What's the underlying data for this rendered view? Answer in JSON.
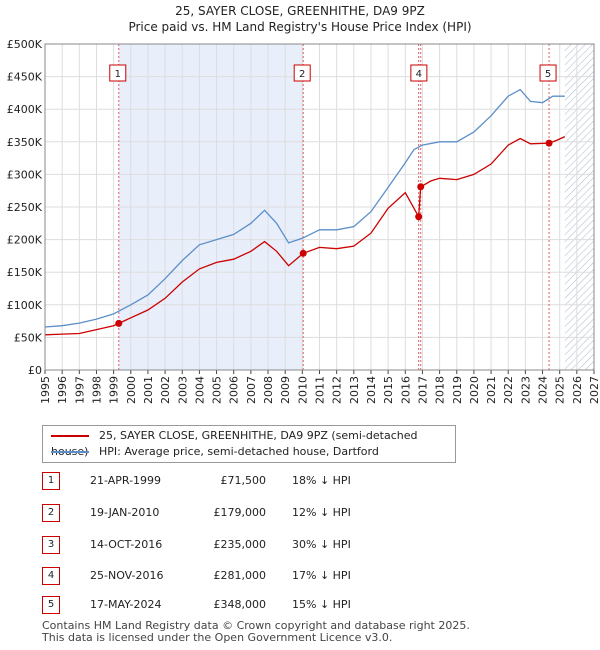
{
  "title_line1": "25, SAYER CLOSE, GREENHITHE, DA9 9PZ",
  "title_line2": "Price paid vs. HM Land Registry's House Price Index (HPI)",
  "colors": {
    "property": "#cc0000",
    "hpi": "#5b8fc9",
    "shade": "#e8eefa",
    "hatch": "#c9d3e3",
    "marker_line": "#e06060"
  },
  "chart_data": {
    "type": "line",
    "xlim": [
      1995,
      2027
    ],
    "ylim": [
      0,
      500000
    ],
    "yticks": [
      {
        "value": 0,
        "label": "£0"
      },
      {
        "value": 50000,
        "label": "£50K"
      },
      {
        "value": 100000,
        "label": "£100K"
      },
      {
        "value": 150000,
        "label": "£150K"
      },
      {
        "value": 200000,
        "label": "£200K"
      },
      {
        "value": 250000,
        "label": "£250K"
      },
      {
        "value": 300000,
        "label": "£300K"
      },
      {
        "value": 350000,
        "label": "£350K"
      },
      {
        "value": 400000,
        "label": "£400K"
      },
      {
        "value": 450000,
        "label": "£450K"
      },
      {
        "value": 500000,
        "label": "£500K"
      }
    ],
    "xticks": [
      "1995",
      "1996",
      "1997",
      "1998",
      "1999",
      "2000",
      "2001",
      "2002",
      "2003",
      "2004",
      "2005",
      "2006",
      "2007",
      "2008",
      "2009",
      "2010",
      "2011",
      "2012",
      "2013",
      "2014",
      "2015",
      "2016",
      "2017",
      "2018",
      "2019",
      "2020",
      "2021",
      "2022",
      "2023",
      "2024",
      "2025",
      "2026",
      "2027"
    ],
    "shaded_regions": [
      [
        1999.3,
        2010.05
      ]
    ],
    "hatched_from": 2025.3,
    "series": [
      {
        "name": "25, SAYER CLOSE, GREENHITHE, DA9 9PZ (semi-detached house)",
        "color": "#cc0000",
        "points": [
          [
            1995,
            54000
          ],
          [
            1996,
            55000
          ],
          [
            1997,
            56000
          ],
          [
            1998,
            62000
          ],
          [
            1999,
            68000
          ],
          [
            1999.3,
            71500
          ],
          [
            2000,
            80000
          ],
          [
            2001,
            92000
          ],
          [
            2002,
            110000
          ],
          [
            2003,
            135000
          ],
          [
            2004,
            155000
          ],
          [
            2005,
            165000
          ],
          [
            2006,
            170000
          ],
          [
            2007,
            182000
          ],
          [
            2007.8,
            197000
          ],
          [
            2008.5,
            182000
          ],
          [
            2009.2,
            160000
          ],
          [
            2010.05,
            179000
          ],
          [
            2011,
            188000
          ],
          [
            2012,
            186000
          ],
          [
            2013,
            190000
          ],
          [
            2014,
            210000
          ],
          [
            2015,
            248000
          ],
          [
            2016,
            272000
          ],
          [
            2016.78,
            235000
          ],
          [
            2016.9,
            281000
          ],
          [
            2017.5,
            290000
          ],
          [
            2018,
            294000
          ],
          [
            2019,
            292000
          ],
          [
            2020,
            300000
          ],
          [
            2021,
            316000
          ],
          [
            2022,
            345000
          ],
          [
            2022.7,
            355000
          ],
          [
            2023.3,
            347000
          ],
          [
            2024.38,
            348000
          ],
          [
            2024.8,
            352000
          ],
          [
            2025.3,
            358000
          ]
        ]
      },
      {
        "name": "HPI: Average price, semi-detached house, Dartford",
        "color": "#5b8fc9",
        "points": [
          [
            1995,
            66000
          ],
          [
            1996,
            68000
          ],
          [
            1997,
            72000
          ],
          [
            1998,
            78000
          ],
          [
            1999,
            86000
          ],
          [
            2000,
            100000
          ],
          [
            2001,
            115000
          ],
          [
            2002,
            140000
          ],
          [
            2003,
            168000
          ],
          [
            2004,
            192000
          ],
          [
            2005,
            200000
          ],
          [
            2006,
            208000
          ],
          [
            2007,
            225000
          ],
          [
            2007.8,
            245000
          ],
          [
            2008.5,
            225000
          ],
          [
            2009.2,
            195000
          ],
          [
            2010,
            202000
          ],
          [
            2011,
            215000
          ],
          [
            2012,
            215000
          ],
          [
            2013,
            220000
          ],
          [
            2014,
            243000
          ],
          [
            2015,
            280000
          ],
          [
            2016,
            318000
          ],
          [
            2016.5,
            338000
          ],
          [
            2017,
            345000
          ],
          [
            2018,
            350000
          ],
          [
            2019,
            350000
          ],
          [
            2020,
            365000
          ],
          [
            2021,
            390000
          ],
          [
            2022,
            420000
          ],
          [
            2022.7,
            430000
          ],
          [
            2023.3,
            412000
          ],
          [
            2024,
            410000
          ],
          [
            2024.6,
            420000
          ],
          [
            2025.3,
            420000
          ]
        ]
      }
    ],
    "sale_markers": [
      {
        "id": "1",
        "x": 1999.3,
        "y": 71500
      },
      {
        "id": "2",
        "x": 2010.05,
        "y": 179000
      },
      {
        "id": "3",
        "x": 2016.78,
        "y": 235000
      },
      {
        "id": "4",
        "x": 2016.9,
        "y": 281000
      },
      {
        "id": "5",
        "x": 2024.38,
        "y": 348000
      }
    ],
    "box_labels": [
      {
        "id": "1",
        "x": 1999.3
      },
      {
        "id": "2",
        "x": 2010.05
      },
      {
        "id": "4",
        "x": 2016.85
      },
      {
        "id": "5",
        "x": 2024.38
      }
    ]
  },
  "legend": {
    "property_label": "25, SAYER CLOSE, GREENHITHE, DA9 9PZ (semi-detached house)",
    "hpi_label": "HPI: Average price, semi-detached house, Dartford"
  },
  "transactions": [
    {
      "id": "1",
      "date": "21-APR-1999",
      "price": "£71,500",
      "hpi": "18% ↓ HPI"
    },
    {
      "id": "2",
      "date": "19-JAN-2010",
      "price": "£179,000",
      "hpi": "12% ↓ HPI"
    },
    {
      "id": "3",
      "date": "14-OCT-2016",
      "price": "£235,000",
      "hpi": "30% ↓ HPI"
    },
    {
      "id": "4",
      "date": "25-NOV-2016",
      "price": "£281,000",
      "hpi": "17% ↓ HPI"
    },
    {
      "id": "5",
      "date": "17-MAY-2024",
      "price": "£348,000",
      "hpi": "15% ↓ HPI"
    }
  ],
  "footer_line1": "Contains HM Land Registry data © Crown copyright and database right 2025.",
  "footer_line2": "This data is licensed under the Open Government Licence v3.0."
}
